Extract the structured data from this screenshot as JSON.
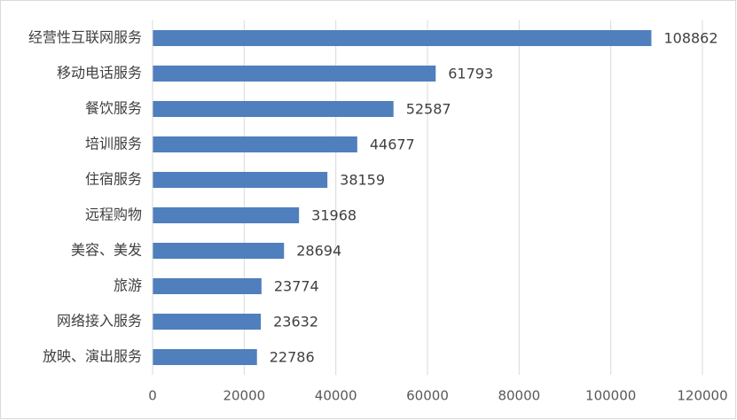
{
  "chart_data": {
    "type": "bar",
    "orientation": "horizontal",
    "categories": [
      "经营性互联网服务",
      "移动电话服务",
      "餐饮服务",
      "培训服务",
      "住宿服务",
      "远程购物",
      "美容、美发",
      "旅游",
      "网络接入服务",
      "放映、演出服务"
    ],
    "values": [
      108862,
      61793,
      52587,
      44677,
      38159,
      31968,
      28694,
      23774,
      23632,
      22786
    ],
    "color": "#4f7fbd",
    "xlim": [
      0,
      120000
    ],
    "xticks": [
      0,
      20000,
      40000,
      60000,
      80000,
      100000,
      120000
    ],
    "grid": true
  }
}
